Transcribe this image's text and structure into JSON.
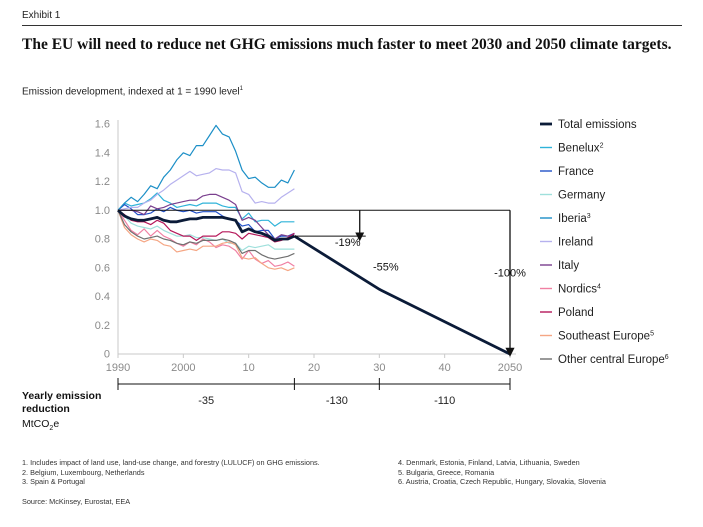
{
  "header": {
    "exhibit": "Exhibit 1",
    "title": "The EU will need to reduce net GHG emissions much faster to meet 2030 and 2050 climate targets.",
    "subtitle": "Emission development, indexed at 1 = 1990 level",
    "subtitle_footnote": "1"
  },
  "chart_data": {
    "type": "line",
    "x_tick_labels": [
      "1990",
      "2000",
      "10",
      "20",
      "30",
      "40",
      "2050"
    ],
    "x_ticks": [
      1990,
      2000,
      2010,
      2020,
      2030,
      2040,
      2050
    ],
    "y_ticks": [
      0,
      0.2,
      0.4,
      0.6,
      0.8,
      1.0,
      1.2,
      1.4,
      1.6
    ],
    "y_tick_labels": [
      "0",
      "0.2",
      "0.4",
      "0.6",
      "0.8",
      "1.0",
      "1.2",
      "1.4",
      "1.6"
    ],
    "xlim": [
      1990,
      2050
    ],
    "ylim": [
      0,
      1.6
    ],
    "legend_position": "right",
    "series": [
      {
        "name": "Total emissions",
        "sup": "",
        "color": "#0b1b38",
        "width": 2.8,
        "x": [
          1990,
          1991,
          1992,
          1993,
          1994,
          1995,
          1996,
          1997,
          1998,
          1999,
          2000,
          2001,
          2002,
          2003,
          2004,
          2005,
          2006,
          2007,
          2008,
          2009,
          2010,
          2011,
          2012,
          2013,
          2014,
          2015,
          2016,
          2017
        ],
        "y": [
          1.0,
          0.96,
          0.94,
          0.93,
          0.93,
          0.94,
          0.95,
          0.93,
          0.92,
          0.92,
          0.93,
          0.94,
          0.94,
          0.95,
          0.95,
          0.95,
          0.95,
          0.94,
          0.93,
          0.85,
          0.87,
          0.85,
          0.84,
          0.82,
          0.79,
          0.8,
          0.8,
          0.82
        ]
      },
      {
        "name": "Benelux",
        "sup": "2",
        "color": "#2fb3d9",
        "width": 1.2,
        "x": [
          1990,
          1991,
          1992,
          1993,
          1994,
          1995,
          1996,
          1997,
          1998,
          1999,
          2000,
          2001,
          2002,
          2003,
          2004,
          2005,
          2006,
          2007,
          2008,
          2009,
          2010,
          2011,
          2012,
          2013,
          2014,
          2015,
          2016,
          2017
        ],
        "y": [
          1.0,
          1.05,
          1.03,
          1.04,
          1.05,
          1.08,
          1.12,
          1.07,
          1.05,
          1.02,
          1.03,
          1.04,
          1.03,
          1.05,
          1.05,
          1.05,
          1.03,
          1.02,
          1.02,
          0.94,
          0.98,
          0.92,
          0.93,
          0.93,
          0.89,
          0.92,
          0.92,
          0.92
        ]
      },
      {
        "name": "France",
        "sup": "",
        "color": "#2251c8",
        "width": 1.2,
        "x": [
          1990,
          1991,
          1992,
          1993,
          1994,
          1995,
          1996,
          1997,
          1998,
          1999,
          2000,
          2001,
          2002,
          2003,
          2004,
          2005,
          2006,
          2007,
          2008,
          2009,
          2010,
          2011,
          2012,
          2013,
          2014,
          2015,
          2016,
          2017
        ],
        "y": [
          1.0,
          1.04,
          1.01,
          0.97,
          0.97,
          0.98,
          1.01,
          0.99,
          1.02,
          1.0,
          0.99,
          1.0,
          0.98,
          0.99,
          0.99,
          0.99,
          0.96,
          0.94,
          0.93,
          0.89,
          0.9,
          0.85,
          0.86,
          0.86,
          0.8,
          0.82,
          0.82,
          0.84
        ]
      },
      {
        "name": "Germany",
        "sup": "",
        "color": "#9fe0dc",
        "width": 1.2,
        "x": [
          1990,
          1991,
          1992,
          1993,
          1994,
          1995,
          1996,
          1997,
          1998,
          1999,
          2000,
          2001,
          2002,
          2003,
          2004,
          2005,
          2006,
          2007,
          2008,
          2009,
          2010,
          2011,
          2012,
          2013,
          2014,
          2015,
          2016,
          2017
        ],
        "y": [
          1.0,
          0.96,
          0.91,
          0.89,
          0.88,
          0.87,
          0.89,
          0.86,
          0.84,
          0.82,
          0.82,
          0.83,
          0.81,
          0.81,
          0.8,
          0.79,
          0.8,
          0.77,
          0.77,
          0.72,
          0.75,
          0.74,
          0.75,
          0.76,
          0.73,
          0.73,
          0.73,
          0.73
        ]
      },
      {
        "name": "Iberia",
        "sup": "3",
        "color": "#1c8fc7",
        "width": 1.2,
        "x": [
          1990,
          1991,
          1992,
          1993,
          1994,
          1995,
          1996,
          1997,
          1998,
          1999,
          2000,
          2001,
          2002,
          2003,
          2004,
          2005,
          2006,
          2007,
          2008,
          2009,
          2010,
          2011,
          2012,
          2013,
          2014,
          2015,
          2016,
          2017
        ],
        "y": [
          1.0,
          1.05,
          1.09,
          1.06,
          1.11,
          1.17,
          1.15,
          1.23,
          1.28,
          1.35,
          1.4,
          1.38,
          1.45,
          1.45,
          1.52,
          1.59,
          1.53,
          1.51,
          1.41,
          1.28,
          1.22,
          1.23,
          1.19,
          1.16,
          1.16,
          1.21,
          1.19,
          1.28
        ]
      },
      {
        "name": "Ireland",
        "sup": "",
        "color": "#b6b1ee",
        "width": 1.2,
        "x": [
          1990,
          1991,
          1992,
          1993,
          1994,
          1995,
          1996,
          1997,
          1998,
          1999,
          2000,
          2001,
          2002,
          2003,
          2004,
          2005,
          2006,
          2007,
          2008,
          2009,
          2010,
          2011,
          2012,
          2013,
          2014,
          2015,
          2016,
          2017
        ],
        "y": [
          1.0,
          1.01,
          1.02,
          1.02,
          1.05,
          1.07,
          1.11,
          1.14,
          1.18,
          1.21,
          1.24,
          1.27,
          1.24,
          1.25,
          1.26,
          1.29,
          1.28,
          1.28,
          1.26,
          1.13,
          1.11,
          1.05,
          1.06,
          1.05,
          1.05,
          1.09,
          1.12,
          1.15
        ]
      },
      {
        "name": "Italy",
        "sup": "",
        "color": "#7a3f8e",
        "width": 1.2,
        "x": [
          1990,
          1991,
          1992,
          1993,
          1994,
          1995,
          1996,
          1997,
          1998,
          1999,
          2000,
          2001,
          2002,
          2003,
          2004,
          2005,
          2006,
          2007,
          2008,
          2009,
          2010,
          2011,
          2012,
          2013,
          2014,
          2015,
          2016,
          2017
        ],
        "y": [
          1.0,
          1.0,
          1.0,
          0.99,
          0.97,
          1.03,
          1.01,
          1.02,
          1.04,
          1.05,
          1.06,
          1.07,
          1.07,
          1.1,
          1.11,
          1.11,
          1.09,
          1.07,
          1.04,
          0.93,
          0.95,
          0.93,
          0.88,
          0.83,
          0.8,
          0.83,
          0.82,
          0.83
        ]
      },
      {
        "name": "Nordics",
        "sup": "4",
        "color": "#f080a3",
        "width": 1.2,
        "x": [
          1990,
          1991,
          1992,
          1993,
          1994,
          1995,
          1996,
          1997,
          1998,
          1999,
          2000,
          2001,
          2002,
          2003,
          2004,
          2005,
          2006,
          2007,
          2008,
          2009,
          2010,
          2011,
          2012,
          2013,
          2014,
          2015,
          2016,
          2017
        ],
        "y": [
          1.0,
          0.93,
          0.86,
          0.83,
          0.87,
          0.82,
          0.86,
          0.82,
          0.8,
          0.77,
          0.75,
          0.78,
          0.76,
          0.8,
          0.78,
          0.74,
          0.76,
          0.75,
          0.72,
          0.66,
          0.72,
          0.66,
          0.63,
          0.65,
          0.61,
          0.62,
          0.64,
          0.61
        ]
      },
      {
        "name": "Poland",
        "sup": "",
        "color": "#b5185a",
        "width": 1.2,
        "x": [
          1990,
          1991,
          1992,
          1993,
          1994,
          1995,
          1996,
          1997,
          1998,
          1999,
          2000,
          2001,
          2002,
          2003,
          2004,
          2005,
          2006,
          2007,
          2008,
          2009,
          2010,
          2011,
          2012,
          2013,
          2014,
          2015,
          2016,
          2017
        ],
        "y": [
          1.0,
          0.97,
          0.93,
          0.92,
          0.92,
          0.9,
          0.93,
          0.91,
          0.86,
          0.84,
          0.82,
          0.82,
          0.79,
          0.82,
          0.82,
          0.82,
          0.85,
          0.85,
          0.84,
          0.8,
          0.84,
          0.83,
          0.82,
          0.81,
          0.78,
          0.79,
          0.81,
          0.84
        ]
      },
      {
        "name": "Southeast Europe",
        "sup": "5",
        "color": "#f5a684",
        "width": 1.2,
        "x": [
          1990,
          1991,
          1992,
          1993,
          1994,
          1995,
          1996,
          1997,
          1998,
          1999,
          2000,
          2001,
          2002,
          2003,
          2004,
          2005,
          2006,
          2007,
          2008,
          2009,
          2010,
          2011,
          2012,
          2013,
          2014,
          2015,
          2016,
          2017
        ],
        "y": [
          1.0,
          0.88,
          0.83,
          0.8,
          0.78,
          0.8,
          0.79,
          0.76,
          0.75,
          0.71,
          0.72,
          0.73,
          0.72,
          0.75,
          0.75,
          0.75,
          0.77,
          0.78,
          0.76,
          0.67,
          0.66,
          0.67,
          0.63,
          0.6,
          0.59,
          0.6,
          0.58,
          0.6
        ]
      },
      {
        "name": "Other central Europe",
        "sup": "6",
        "color": "#6f6f6f",
        "width": 1.2,
        "x": [
          1990,
          1991,
          1992,
          1993,
          1994,
          1995,
          1996,
          1997,
          1998,
          1999,
          2000,
          2001,
          2002,
          2003,
          2004,
          2005,
          2006,
          2007,
          2008,
          2009,
          2010,
          2011,
          2012,
          2013,
          2014,
          2015,
          2016,
          2017
        ],
        "y": [
          1.0,
          0.9,
          0.85,
          0.82,
          0.8,
          0.81,
          0.82,
          0.8,
          0.79,
          0.77,
          0.76,
          0.78,
          0.77,
          0.79,
          0.79,
          0.79,
          0.8,
          0.79,
          0.77,
          0.7,
          0.72,
          0.72,
          0.69,
          0.67,
          0.66,
          0.67,
          0.68,
          0.7
        ]
      }
    ],
    "targets": [
      {
        "label": "-19%",
        "x": 2027,
        "from": 1.0,
        "to": 0.81
      },
      {
        "label": "-55%",
        "from_x": 2017,
        "from_y": 0.82,
        "to_x": 2030,
        "to_y": 0.45
      },
      {
        "label": "-100%",
        "x": 2050,
        "from": 1.0,
        "to": 0.0
      }
    ],
    "target_path": {
      "x": [
        2017,
        2030,
        2050
      ],
      "y": [
        0.82,
        0.45,
        0.0
      ]
    },
    "emission_reduction": {
      "label": "Yearly emission reduction",
      "unit": "MtCO",
      "unit_sub": "2",
      "unit_tail": "e",
      "segments": [
        {
          "label": "-35",
          "from": 1990,
          "to": 2017
        },
        {
          "label": "-130",
          "from": 2017,
          "to": 2030
        },
        {
          "label": "-110",
          "from": 2030,
          "to": 2050
        }
      ]
    }
  },
  "footnotes": {
    "left": [
      "1. Includes impact of land use, land-use change, and forestry (LULUCF) on GHG emissions.",
      "2. Belgium, Luxembourg, Netherlands",
      "3. Spain & Portugal"
    ],
    "right": [
      "4. Denmark, Estonia, Finland, Latvia, Lithuania, Sweden",
      "5. Bulgaria, Greece, Romania",
      "6. Austria, Croatia, Czech Republic, Hungary, Slovakia, Slovenia"
    ],
    "source": "Source: McKinsey, Eurostat, EEA"
  }
}
